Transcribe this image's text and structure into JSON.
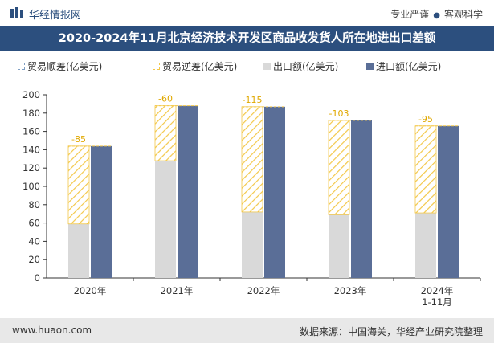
{
  "header": {
    "brand": "华经情报网",
    "tagline_left": "专业严谨",
    "tagline_right": "客观科学"
  },
  "title": "2020-2024年11月北京经济技术开发区商品收发货人所在地进出口差额",
  "colors": {
    "header_bg": "#2c4f7e",
    "export": "#d9d9d9",
    "import": "#5a6e97",
    "deficit_hatch": "#f3c84a",
    "surplus": "#7f9fc4",
    "label": "#e0a800"
  },
  "chart_data": {
    "type": "bar",
    "categories": [
      "2020年",
      "2021年",
      "2022年",
      "2023年",
      "2024年\n1-11月"
    ],
    "series": [
      {
        "name": "贸易顺差(亿美元)",
        "values": [
          null,
          null,
          null,
          null,
          null
        ]
      },
      {
        "name": "贸易逆差(亿美元)",
        "values": [
          -85,
          -60,
          -115,
          -103,
          -95
        ]
      },
      {
        "name": "出口额(亿美元)",
        "values": [
          59,
          128,
          72,
          69,
          71
        ]
      },
      {
        "name": "进口额(亿美元)",
        "values": [
          144,
          188,
          187,
          172,
          166
        ]
      }
    ],
    "data_labels": [
      "-85",
      "-60",
      "-115",
      "-103",
      "-95"
    ],
    "yticks": [
      0,
      20,
      40,
      60,
      80,
      100,
      120,
      140,
      160,
      180,
      200
    ],
    "ylim": [
      0,
      200
    ],
    "grid": false,
    "legend": "top"
  },
  "footer": {
    "site": "www.huaon.com",
    "source": "数据来源：中国海关，华经产业研究院整理"
  }
}
